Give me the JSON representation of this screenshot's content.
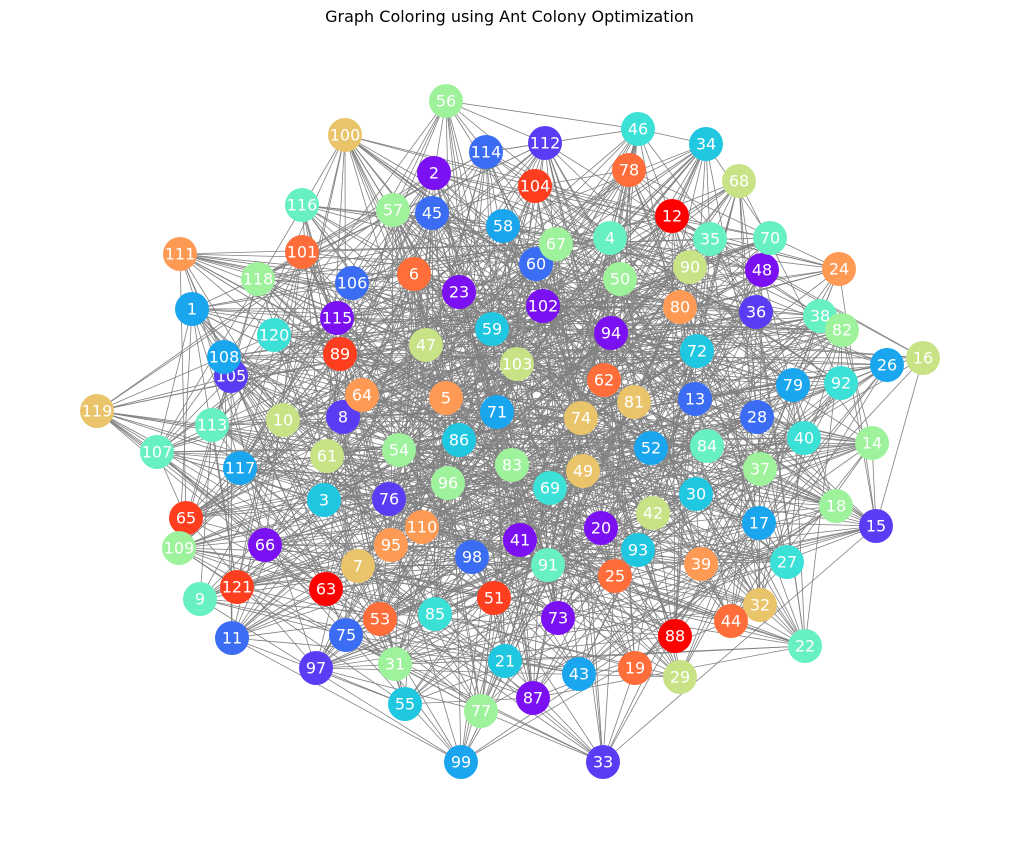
{
  "title": "Graph Coloring using Ant Colony Optimization",
  "style": {
    "edge_color": "#808080",
    "label_color": "#ffffff"
  },
  "palette": {
    "red": "#ff0000",
    "red_orange": "#ff3d1f",
    "orange": "#ff6d3b",
    "light_orange": "#ff9a55",
    "gold": "#e9c46a",
    "yellow_green": "#c8e386",
    "light_green": "#9ef29b",
    "mint": "#66f0c3",
    "teal": "#3be0d6",
    "cyan": "#1fc7e0",
    "sky": "#1aa6ee",
    "blue": "#3a6cf4",
    "indigo": "#5b3cf5",
    "violet": "#7b10f3"
  },
  "nodes": [
    {
      "id": "1",
      "color": "sky"
    },
    {
      "id": "2",
      "color": "violet"
    },
    {
      "id": "3",
      "color": "cyan"
    },
    {
      "id": "4",
      "color": "mint"
    },
    {
      "id": "5",
      "color": "light_orange"
    },
    {
      "id": "6",
      "color": "orange"
    },
    {
      "id": "7",
      "color": "gold"
    },
    {
      "id": "8",
      "color": "indigo"
    },
    {
      "id": "9",
      "color": "mint"
    },
    {
      "id": "10",
      "color": "yellow_green"
    },
    {
      "id": "11",
      "color": "blue"
    },
    {
      "id": "12",
      "color": "red"
    },
    {
      "id": "13",
      "color": "blue"
    },
    {
      "id": "14",
      "color": "light_green"
    },
    {
      "id": "15",
      "color": "indigo"
    },
    {
      "id": "16",
      "color": "yellow_green"
    },
    {
      "id": "17",
      "color": "sky"
    },
    {
      "id": "18",
      "color": "light_green"
    },
    {
      "id": "19",
      "color": "orange"
    },
    {
      "id": "20",
      "color": "violet"
    },
    {
      "id": "21",
      "color": "cyan"
    },
    {
      "id": "22",
      "color": "mint"
    },
    {
      "id": "23",
      "color": "violet"
    },
    {
      "id": "24",
      "color": "light_orange"
    },
    {
      "id": "25",
      "color": "orange"
    },
    {
      "id": "26",
      "color": "sky"
    },
    {
      "id": "27",
      "color": "teal"
    },
    {
      "id": "28",
      "color": "blue"
    },
    {
      "id": "29",
      "color": "yellow_green"
    },
    {
      "id": "30",
      "color": "cyan"
    },
    {
      "id": "31",
      "color": "light_green"
    },
    {
      "id": "32",
      "color": "gold"
    },
    {
      "id": "33",
      "color": "indigo"
    },
    {
      "id": "34",
      "color": "cyan"
    },
    {
      "id": "35",
      "color": "mint"
    },
    {
      "id": "36",
      "color": "indigo"
    },
    {
      "id": "37",
      "color": "light_green"
    },
    {
      "id": "38",
      "color": "mint"
    },
    {
      "id": "39",
      "color": "light_orange"
    },
    {
      "id": "40",
      "color": "teal"
    },
    {
      "id": "41",
      "color": "violet"
    },
    {
      "id": "42",
      "color": "yellow_green"
    },
    {
      "id": "43",
      "color": "sky"
    },
    {
      "id": "44",
      "color": "orange"
    },
    {
      "id": "45",
      "color": "blue"
    },
    {
      "id": "46",
      "color": "teal"
    },
    {
      "id": "47",
      "color": "yellow_green"
    },
    {
      "id": "48",
      "color": "violet"
    },
    {
      "id": "49",
      "color": "gold"
    },
    {
      "id": "50",
      "color": "light_green"
    },
    {
      "id": "51",
      "color": "red_orange"
    },
    {
      "id": "52",
      "color": "sky"
    },
    {
      "id": "53",
      "color": "orange"
    },
    {
      "id": "54",
      "color": "light_green"
    },
    {
      "id": "55",
      "color": "cyan"
    },
    {
      "id": "56",
      "color": "light_green"
    },
    {
      "id": "57",
      "color": "light_green"
    },
    {
      "id": "58",
      "color": "sky"
    },
    {
      "id": "59",
      "color": "cyan"
    },
    {
      "id": "60",
      "color": "blue"
    },
    {
      "id": "61",
      "color": "yellow_green"
    },
    {
      "id": "62",
      "color": "orange"
    },
    {
      "id": "63",
      "color": "red"
    },
    {
      "id": "64",
      "color": "light_orange"
    },
    {
      "id": "65",
      "color": "red_orange"
    },
    {
      "id": "66",
      "color": "violet"
    },
    {
      "id": "67",
      "color": "light_green"
    },
    {
      "id": "68",
      "color": "yellow_green"
    },
    {
      "id": "69",
      "color": "teal"
    },
    {
      "id": "70",
      "color": "mint"
    },
    {
      "id": "71",
      "color": "sky"
    },
    {
      "id": "72",
      "color": "cyan"
    },
    {
      "id": "73",
      "color": "violet"
    },
    {
      "id": "74",
      "color": "gold"
    },
    {
      "id": "75",
      "color": "blue"
    },
    {
      "id": "76",
      "color": "indigo"
    },
    {
      "id": "77",
      "color": "light_green"
    },
    {
      "id": "78",
      "color": "orange"
    },
    {
      "id": "79",
      "color": "sky"
    },
    {
      "id": "80",
      "color": "light_orange"
    },
    {
      "id": "81",
      "color": "gold"
    },
    {
      "id": "82",
      "color": "light_green"
    },
    {
      "id": "83",
      "color": "light_green"
    },
    {
      "id": "84",
      "color": "mint"
    },
    {
      "id": "85",
      "color": "teal"
    },
    {
      "id": "86",
      "color": "cyan"
    },
    {
      "id": "87",
      "color": "violet"
    },
    {
      "id": "88",
      "color": "red"
    },
    {
      "id": "89",
      "color": "red_orange"
    },
    {
      "id": "90",
      "color": "yellow_green"
    },
    {
      "id": "91",
      "color": "mint"
    },
    {
      "id": "92",
      "color": "teal"
    },
    {
      "id": "93",
      "color": "cyan"
    },
    {
      "id": "94",
      "color": "violet"
    },
    {
      "id": "95",
      "color": "light_orange"
    },
    {
      "id": "96",
      "color": "light_green"
    },
    {
      "id": "97",
      "color": "indigo"
    },
    {
      "id": "98",
      "color": "blue"
    },
    {
      "id": "99",
      "color": "sky"
    },
    {
      "id": "100",
      "color": "gold"
    },
    {
      "id": "101",
      "color": "orange"
    },
    {
      "id": "102",
      "color": "violet"
    },
    {
      "id": "103",
      "color": "yellow_green"
    },
    {
      "id": "104",
      "color": "red_orange"
    },
    {
      "id": "105",
      "color": "indigo"
    },
    {
      "id": "106",
      "color": "blue"
    },
    {
      "id": "107",
      "color": "mint"
    },
    {
      "id": "108",
      "color": "sky"
    },
    {
      "id": "109",
      "color": "light_green"
    },
    {
      "id": "110",
      "color": "light_orange"
    },
    {
      "id": "111",
      "color": "light_orange"
    },
    {
      "id": "112",
      "color": "indigo"
    },
    {
      "id": "113",
      "color": "mint"
    },
    {
      "id": "114",
      "color": "blue"
    },
    {
      "id": "115",
      "color": "violet"
    },
    {
      "id": "116",
      "color": "mint"
    },
    {
      "id": "117",
      "color": "sky"
    },
    {
      "id": "118",
      "color": "light_green"
    },
    {
      "id": "119",
      "color": "gold"
    },
    {
      "id": "120",
      "color": "teal"
    },
    {
      "id": "121",
      "color": "red_orange"
    }
  ]
}
